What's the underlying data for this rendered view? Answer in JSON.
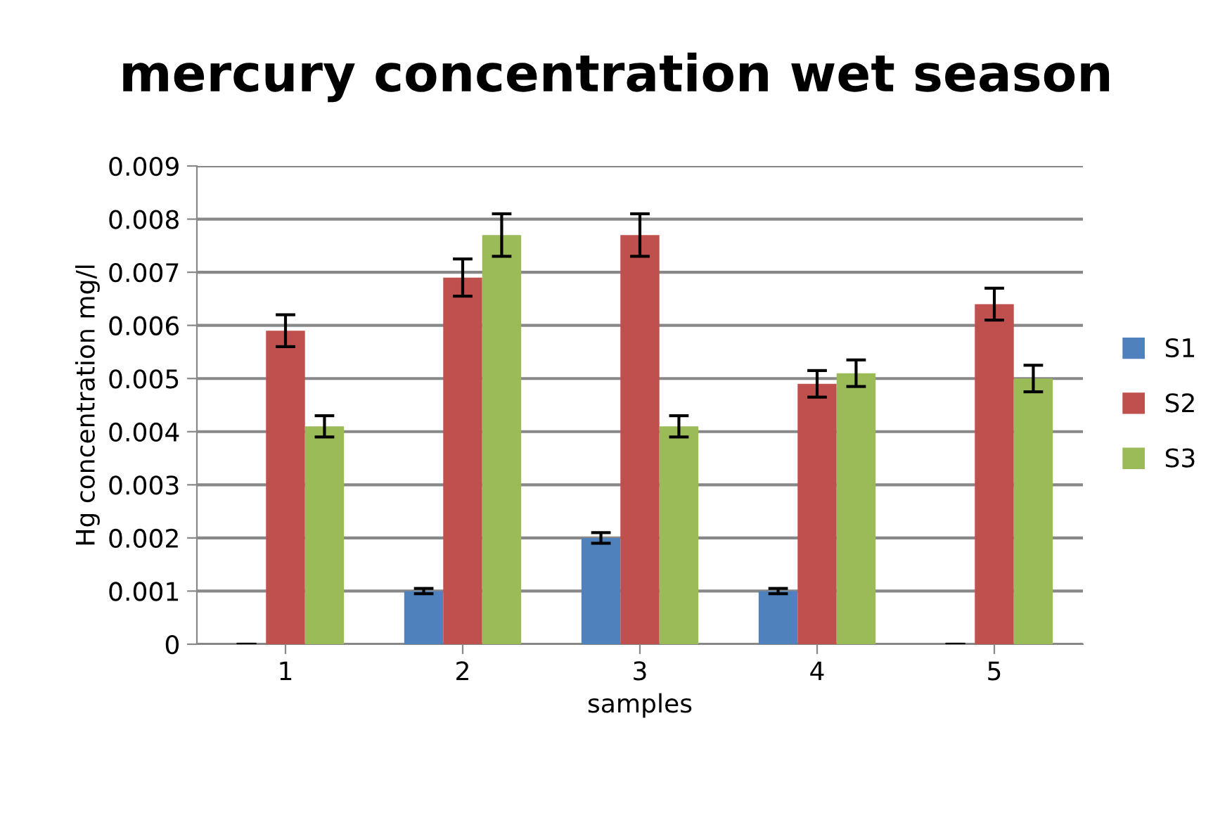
{
  "chart_data": {
    "type": "bar",
    "title": "mercury concentration wet season",
    "xlabel": "samples",
    "ylabel": "Hg concentration mg/l",
    "categories": [
      "1",
      "2",
      "3",
      "4",
      "5"
    ],
    "series": [
      {
        "name": "S1",
        "color": "#4f81bd",
        "values": [
          0,
          0.001,
          0.002,
          0.001,
          0
        ],
        "errors": [
          0,
          5e-05,
          0.0001,
          5e-05,
          0
        ]
      },
      {
        "name": "S2",
        "color": "#c0504d",
        "values": [
          0.0059,
          0.0069,
          0.0077,
          0.0049,
          0.0064
        ],
        "errors": [
          0.0003,
          0.00035,
          0.0004,
          0.00025,
          0.0003
        ]
      },
      {
        "name": "S3",
        "color": "#9bbb59",
        "values": [
          0.0041,
          0.0077,
          0.0041,
          0.0051,
          0.005
        ],
        "errors": [
          0.0002,
          0.0004,
          0.0002,
          0.00025,
          0.00025
        ]
      }
    ],
    "ylim": [
      0,
      0.009
    ],
    "yticks": [
      0,
      0.001,
      0.002,
      0.003,
      0.004,
      0.005,
      0.006,
      0.007,
      0.008,
      0.009
    ],
    "grid": "y",
    "legend": "right"
  }
}
